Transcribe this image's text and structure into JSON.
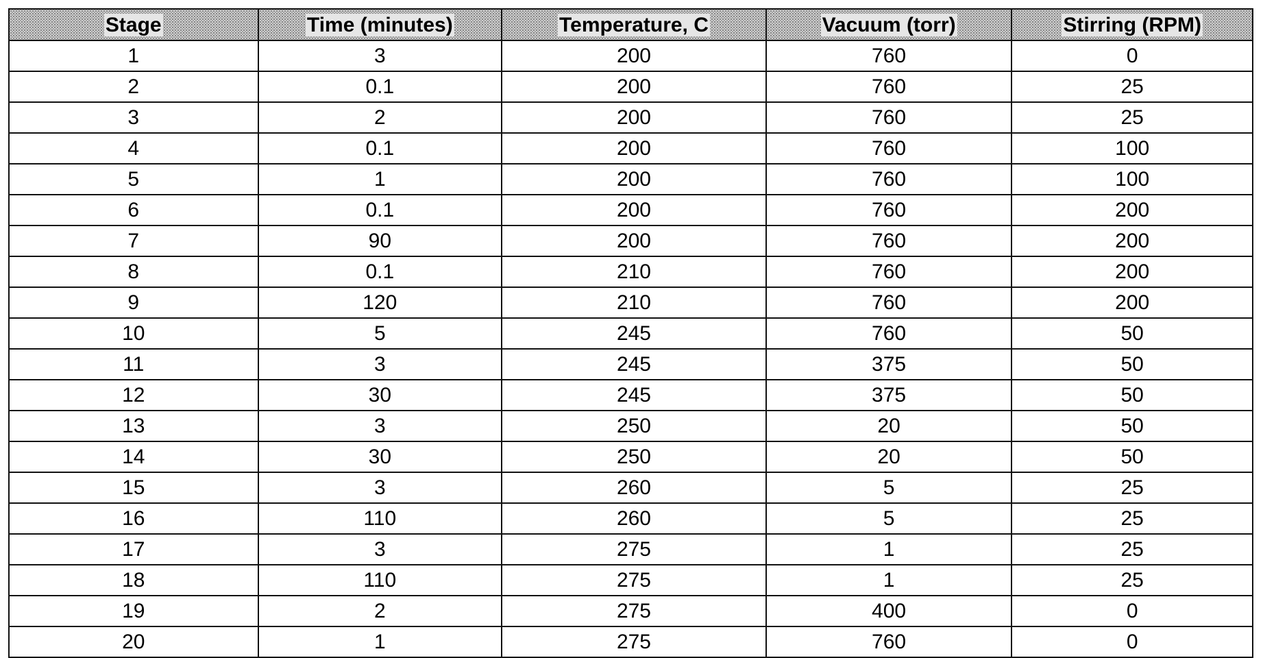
{
  "table": {
    "headers": [
      "Stage",
      "Time (minutes)",
      "Temperature, C",
      "Vacuum (torr)",
      "Stirring (RPM)"
    ],
    "rows": [
      [
        "1",
        "3",
        "200",
        "760",
        "0"
      ],
      [
        "2",
        "0.1",
        "200",
        "760",
        "25"
      ],
      [
        "3",
        "2",
        "200",
        "760",
        "25"
      ],
      [
        "4",
        "0.1",
        "200",
        "760",
        "100"
      ],
      [
        "5",
        "1",
        "200",
        "760",
        "100"
      ],
      [
        "6",
        "0.1",
        "200",
        "760",
        "200"
      ],
      [
        "7",
        "90",
        "200",
        "760",
        "200"
      ],
      [
        "8",
        "0.1",
        "210",
        "760",
        "200"
      ],
      [
        "9",
        "120",
        "210",
        "760",
        "200"
      ],
      [
        "10",
        "5",
        "245",
        "760",
        "50"
      ],
      [
        "11",
        "3",
        "245",
        "375",
        "50"
      ],
      [
        "12",
        "30",
        "245",
        "375",
        "50"
      ],
      [
        "13",
        "3",
        "250",
        "20",
        "50"
      ],
      [
        "14",
        "30",
        "250",
        "20",
        "50"
      ],
      [
        "15",
        "3",
        "260",
        "5",
        "25"
      ],
      [
        "16",
        "110",
        "260",
        "5",
        "25"
      ],
      [
        "17",
        "3",
        "275",
        "1",
        "25"
      ],
      [
        "18",
        "110",
        "275",
        "1",
        "25"
      ],
      [
        "19",
        "2",
        "275",
        "400",
        "0"
      ],
      [
        "20",
        "1",
        "275",
        "760",
        "0"
      ]
    ]
  }
}
